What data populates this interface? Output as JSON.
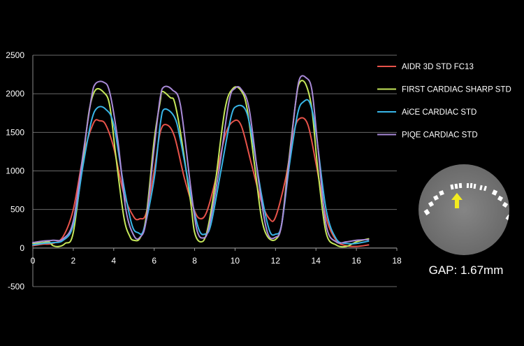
{
  "chart_data": {
    "type": "line",
    "title": "",
    "xlabel": "",
    "ylabel": "",
    "xlim": [
      0,
      18
    ],
    "ylim": [
      -500,
      2500
    ],
    "xticks": [
      "0",
      "2",
      "4",
      "6",
      "8",
      "10",
      "12",
      "14",
      "16",
      "18"
    ],
    "yticks": [
      "-500",
      "0",
      "500",
      "1000",
      "1500",
      "2000",
      "2500"
    ],
    "grid": true,
    "legend_position": "right",
    "series": [
      {
        "name": "AIDR 3D STD FC13",
        "color": "#e8534a",
        "points": [
          [
            0,
            30
          ],
          [
            0.5,
            50
          ],
          [
            1,
            60
          ],
          [
            1.5,
            150
          ],
          [
            2,
            500
          ],
          [
            2.5,
            1200
          ],
          [
            3,
            1620
          ],
          [
            3.3,
            1650
          ],
          [
            3.6,
            1600
          ],
          [
            4,
            1300
          ],
          [
            4.5,
            700
          ],
          [
            5,
            400
          ],
          [
            5.3,
            380
          ],
          [
            5.6,
            450
          ],
          [
            6,
            1000
          ],
          [
            6.3,
            1500
          ],
          [
            6.6,
            1600
          ],
          [
            7,
            1450
          ],
          [
            7.5,
            900
          ],
          [
            8,
            480
          ],
          [
            8.3,
            380
          ],
          [
            8.6,
            470
          ],
          [
            9,
            850
          ],
          [
            9.5,
            1450
          ],
          [
            9.9,
            1640
          ],
          [
            10.3,
            1590
          ],
          [
            10.8,
            1100
          ],
          [
            11.3,
            600
          ],
          [
            11.7,
            380
          ],
          [
            12,
            400
          ],
          [
            12.5,
            900
          ],
          [
            12.9,
            1500
          ],
          [
            13.2,
            1680
          ],
          [
            13.6,
            1600
          ],
          [
            14,
            1100
          ],
          [
            14.5,
            400
          ],
          [
            15,
            100
          ],
          [
            15.5,
            30
          ],
          [
            16,
            20
          ],
          [
            16.6,
            40
          ]
        ]
      },
      {
        "name": "FIRST CARDIAC SHARP STD",
        "color": "#c6e85a",
        "points": [
          [
            0,
            60
          ],
          [
            0.5,
            70
          ],
          [
            0.8,
            80
          ],
          [
            1,
            30
          ],
          [
            1.3,
            20
          ],
          [
            1.6,
            60
          ],
          [
            2,
            200
          ],
          [
            2.5,
            1200
          ],
          [
            2.8,
            1800
          ],
          [
            3.1,
            2050
          ],
          [
            3.5,
            2020
          ],
          [
            3.8,
            1850
          ],
          [
            4.1,
            1200
          ],
          [
            4.5,
            400
          ],
          [
            4.8,
            150
          ],
          [
            5,
            100
          ],
          [
            5.3,
            130
          ],
          [
            5.6,
            400
          ],
          [
            6,
            1400
          ],
          [
            6.3,
            1900
          ],
          [
            6.4,
            2030
          ],
          [
            6.8,
            1950
          ],
          [
            7,
            1900
          ],
          [
            7.3,
            1500
          ],
          [
            7.8,
            600
          ],
          [
            8,
            200
          ],
          [
            8.3,
            80
          ],
          [
            8.6,
            200
          ],
          [
            9,
            800
          ],
          [
            9.5,
            1800
          ],
          [
            9.9,
            2070
          ],
          [
            10.3,
            2040
          ],
          [
            10.6,
            1800
          ],
          [
            11,
            1000
          ],
          [
            11.3,
            400
          ],
          [
            11.6,
            150
          ],
          [
            12,
            110
          ],
          [
            12.3,
            300
          ],
          [
            12.6,
            1000
          ],
          [
            13,
            1900
          ],
          [
            13.2,
            2150
          ],
          [
            13.5,
            2120
          ],
          [
            13.8,
            1800
          ],
          [
            14.1,
            1000
          ],
          [
            14.5,
            200
          ],
          [
            15,
            40
          ],
          [
            15.5,
            20
          ],
          [
            16,
            80
          ],
          [
            16.6,
            120
          ]
        ]
      },
      {
        "name": "AiCE CARDIAC STD",
        "color": "#38b6e8",
        "points": [
          [
            0,
            40
          ],
          [
            0.5,
            60
          ],
          [
            1,
            70
          ],
          [
            1.5,
            100
          ],
          [
            2,
            300
          ],
          [
            2.5,
            1100
          ],
          [
            2.9,
            1650
          ],
          [
            3.2,
            1820
          ],
          [
            3.6,
            1800
          ],
          [
            4,
            1600
          ],
          [
            4.5,
            800
          ],
          [
            4.9,
            300
          ],
          [
            5.2,
            200
          ],
          [
            5.5,
            250
          ],
          [
            6,
            900
          ],
          [
            6.3,
            1600
          ],
          [
            6.5,
            1800
          ],
          [
            7,
            1700
          ],
          [
            7.3,
            1400
          ],
          [
            7.8,
            700
          ],
          [
            8.2,
            250
          ],
          [
            8.5,
            180
          ],
          [
            8.8,
            300
          ],
          [
            9.3,
            1000
          ],
          [
            9.8,
            1700
          ],
          [
            10.1,
            1840
          ],
          [
            10.5,
            1800
          ],
          [
            10.8,
            1500
          ],
          [
            11.3,
            700
          ],
          [
            11.7,
            230
          ],
          [
            12,
            180
          ],
          [
            12.3,
            300
          ],
          [
            12.7,
            1100
          ],
          [
            13.1,
            1750
          ],
          [
            13.4,
            1900
          ],
          [
            13.7,
            1880
          ],
          [
            14,
            1500
          ],
          [
            14.5,
            500
          ],
          [
            15,
            120
          ],
          [
            15.5,
            60
          ],
          [
            16,
            60
          ],
          [
            16.6,
            90
          ]
        ]
      },
      {
        "name": "PIQE CARDIAC STD",
        "color": "#a98ad8",
        "points": [
          [
            0,
            70
          ],
          [
            0.5,
            90
          ],
          [
            1,
            100
          ],
          [
            1.5,
            120
          ],
          [
            2,
            350
          ],
          [
            2.5,
            1250
          ],
          [
            2.9,
            1950
          ],
          [
            3.1,
            2130
          ],
          [
            3.5,
            2150
          ],
          [
            3.8,
            2020
          ],
          [
            4.2,
            1400
          ],
          [
            4.6,
            500
          ],
          [
            5,
            160
          ],
          [
            5.3,
            140
          ],
          [
            5.6,
            350
          ],
          [
            6,
            1300
          ],
          [
            6.3,
            1950
          ],
          [
            6.5,
            2090
          ],
          [
            6.9,
            2050
          ],
          [
            7.3,
            1850
          ],
          [
            7.8,
            800
          ],
          [
            8.1,
            250
          ],
          [
            8.4,
            130
          ],
          [
            8.7,
            260
          ],
          [
            9.2,
            1000
          ],
          [
            9.7,
            1900
          ],
          [
            10,
            2070
          ],
          [
            10.3,
            2060
          ],
          [
            10.7,
            1800
          ],
          [
            11.2,
            800
          ],
          [
            11.6,
            200
          ],
          [
            12,
            140
          ],
          [
            12.3,
            300
          ],
          [
            12.7,
            1200
          ],
          [
            13,
            1900
          ],
          [
            13.2,
            2200
          ],
          [
            13.5,
            2210
          ],
          [
            13.8,
            2050
          ],
          [
            14.1,
            1300
          ],
          [
            14.5,
            300
          ],
          [
            15,
            80
          ],
          [
            15.5,
            80
          ],
          [
            16,
            100
          ],
          [
            16.6,
            110
          ]
        ]
      }
    ]
  },
  "inset": {
    "caption": "GAP: 1.67mm"
  }
}
